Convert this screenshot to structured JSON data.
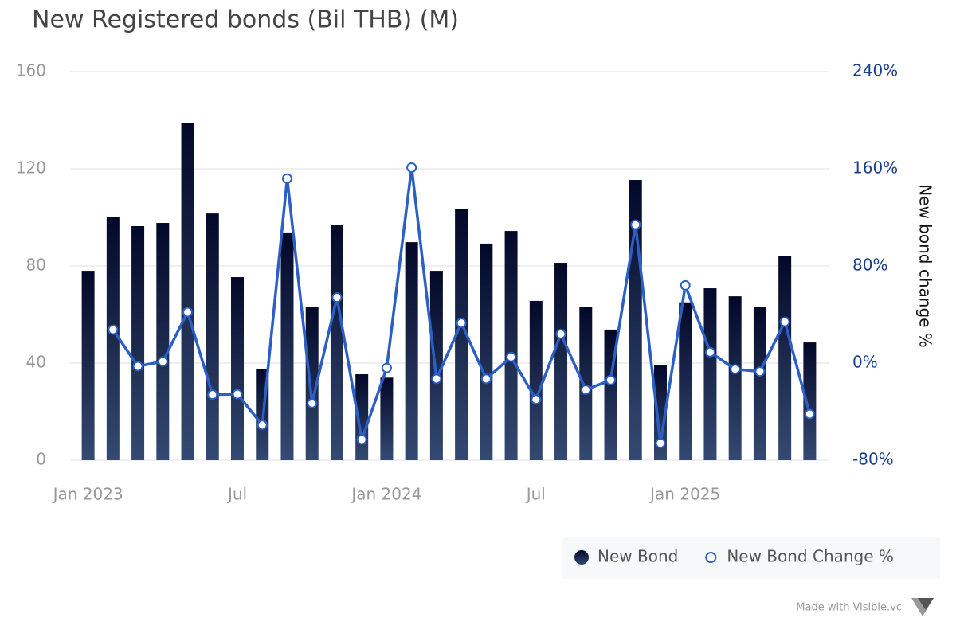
{
  "chart_data": {
    "type": "bar",
    "title": "New Registered bonds (Bil THB) (M)",
    "y2_label": "New bond change %",
    "footer": "Made with Visible.vc",
    "categories": [
      "Jan 2023",
      null,
      null,
      null,
      null,
      null,
      "Jul",
      null,
      null,
      null,
      null,
      null,
      "Jan 2024",
      null,
      null,
      null,
      null,
      null,
      "Jul",
      null,
      null,
      null,
      null,
      null,
      "Jan 2025",
      null,
      null,
      null,
      null,
      null
    ],
    "series": [
      {
        "name": "New Bond",
        "type": "bar",
        "color": "#030828",
        "color_bottom": "#344a72",
        "values": [
          78,
          100,
          96.4,
          97.7,
          139,
          101.6,
          75.4,
          37.4,
          93.8,
          63,
          97,
          35.4,
          34,
          89.8,
          78,
          103.6,
          89.2,
          94.4,
          65.6,
          81.3,
          63,
          53.8,
          115.4,
          39.3,
          65,
          70.8,
          67.5,
          63,
          84,
          48.5
        ]
      },
      {
        "name": "New Bond Change %",
        "type": "line",
        "axis": "y2",
        "color": "#2b5fc4",
        "values": [
          null,
          27.5,
          -2.6,
          1.3,
          42,
          -26,
          -25.6,
          -51,
          152,
          -33,
          54,
          -63,
          -4,
          161,
          -13,
          33,
          -13,
          5,
          -30,
          24,
          -22,
          -14,
          114,
          -66,
          64,
          9,
          -5,
          -7,
          34,
          -42
        ]
      }
    ],
    "ylim": [
      0,
      160
    ],
    "yticks": [
      0,
      40,
      80,
      120,
      160
    ],
    "y2lim": [
      -80,
      240
    ],
    "y2ticks": [
      {
        "value": -80,
        "label": "-80%"
      },
      {
        "value": 0,
        "label": "0%"
      },
      {
        "value": 80,
        "label": "80%"
      },
      {
        "value": 160,
        "label": "160%"
      },
      {
        "value": 240,
        "label": "240%"
      }
    ],
    "grid": true,
    "legend": "bottom-right"
  }
}
